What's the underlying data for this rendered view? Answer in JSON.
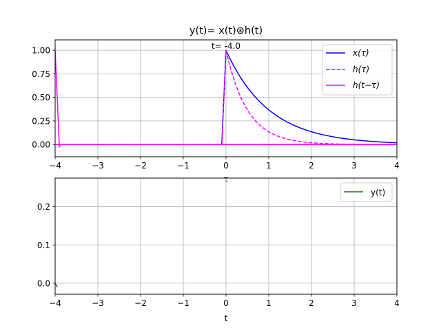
{
  "figure": {
    "title": "y(t)= x(t)⊛h(t)",
    "annotation": "t= -4.0"
  },
  "chart_data": [
    {
      "type": "line",
      "title": "y(t)= x(t)⊛h(t)",
      "xlabel": "τ",
      "ylabel": "",
      "xlim": [
        -4,
        4
      ],
      "ylim": [
        -0.13,
        1.11
      ],
      "grid": true,
      "legend_position": "upper right",
      "xticks": [
        "−4",
        "−3",
        "−2",
        "−1",
        "0",
        "1",
        "2",
        "3",
        "4"
      ],
      "yticks": [
        "0.00",
        "0.25",
        "0.50",
        "0.75",
        "1.00"
      ],
      "annotation": {
        "text": "t= -4.0",
        "x": 0,
        "y": 1.0
      },
      "series": [
        {
          "name": "x(τ)",
          "color": "#0000ff",
          "style": "solid",
          "x": [
            -4,
            -0.1,
            0,
            0.5,
            1,
            1.5,
            2,
            2.5,
            3,
            3.5,
            4
          ],
          "y": [
            0,
            0,
            1.0,
            0.61,
            0.37,
            0.22,
            0.135,
            0.08,
            0.05,
            0.03,
            0.018
          ]
        },
        {
          "name": "h(τ)",
          "color": "#ff00ff",
          "style": "dashed",
          "x": [
            -4,
            -0.1,
            0,
            0.25,
            0.5,
            1,
            1.5,
            2,
            3,
            4
          ],
          "y": [
            0,
            0,
            1.0,
            0.61,
            0.37,
            0.135,
            0.05,
            0.018,
            0.002,
            0.0
          ]
        },
        {
          "name": "h(t−τ)",
          "color": "#ff00ff",
          "style": "solid",
          "x": [
            -4,
            -3.9,
            -3.88,
            4
          ],
          "y": [
            1.0,
            -0.03,
            0,
            0
          ]
        }
      ]
    },
    {
      "type": "line",
      "title": "",
      "xlabel": "t",
      "ylabel": "",
      "xlim": [
        -4,
        4
      ],
      "ylim": [
        -0.029,
        0.275
      ],
      "grid": true,
      "legend_position": "upper right",
      "xticks": [
        "−4",
        "−3",
        "−2",
        "−1",
        "0",
        "1",
        "2",
        "3",
        "4"
      ],
      "yticks": [
        "0.0",
        "0.1",
        "0.2"
      ],
      "series": [
        {
          "name": "y(t)",
          "color": "#008000",
          "style": "solid",
          "x": [
            -4,
            -3.95
          ],
          "y": [
            0,
            -0.01
          ]
        }
      ]
    }
  ]
}
